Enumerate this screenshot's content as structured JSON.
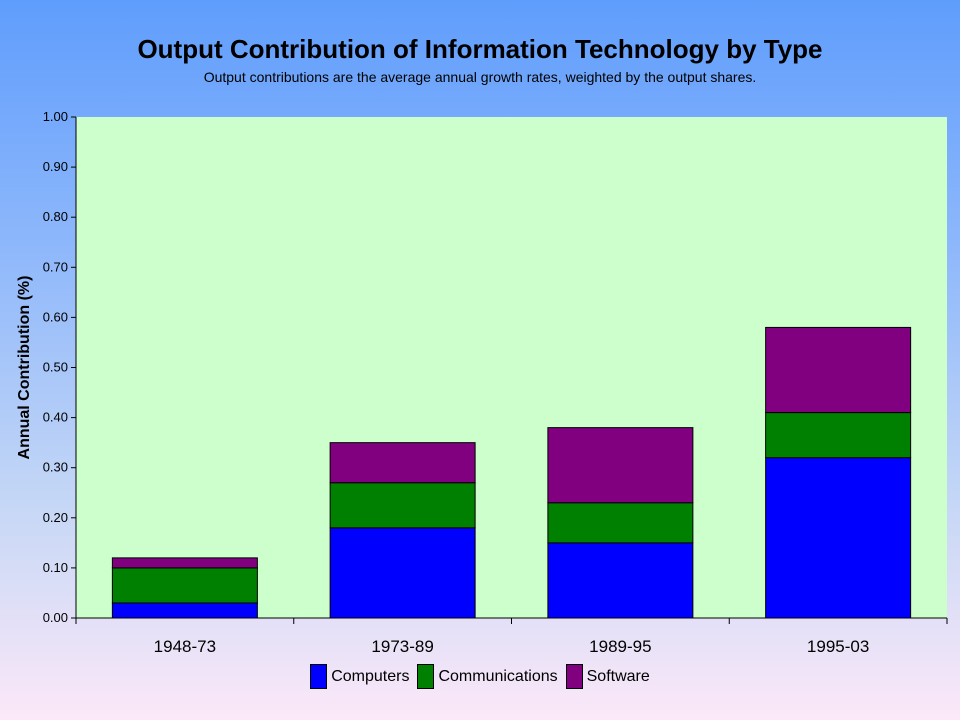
{
  "chart_data": {
    "type": "bar",
    "stacked": true,
    "title": "Output Contribution of Information Technology by Type",
    "subtitle": "Output contributions are the average annual growth rates, weighted by the output shares.",
    "xlabel": "",
    "ylabel": "Annual Contribution (%)",
    "ylim": [
      0,
      1.0
    ],
    "yticks": [
      "0.00",
      "0.10",
      "0.20",
      "0.30",
      "0.40",
      "0.50",
      "0.60",
      "0.70",
      "0.80",
      "0.90",
      "1.00"
    ],
    "categories": [
      "1948-73",
      "1973-89",
      "1989-95",
      "1995-03"
    ],
    "series": [
      {
        "name": "Computers",
        "values": [
          0.03,
          0.18,
          0.15,
          0.32
        ],
        "color": "#0000ff"
      },
      {
        "name": "Communications",
        "values": [
          0.07,
          0.09,
          0.08,
          0.09
        ],
        "color": "#008000"
      },
      {
        "name": "Software",
        "values": [
          0.02,
          0.08,
          0.15,
          0.17
        ],
        "color": "#800080"
      }
    ],
    "grid": false,
    "legend_position": "bottom",
    "plot_background": "#ccffcc"
  }
}
